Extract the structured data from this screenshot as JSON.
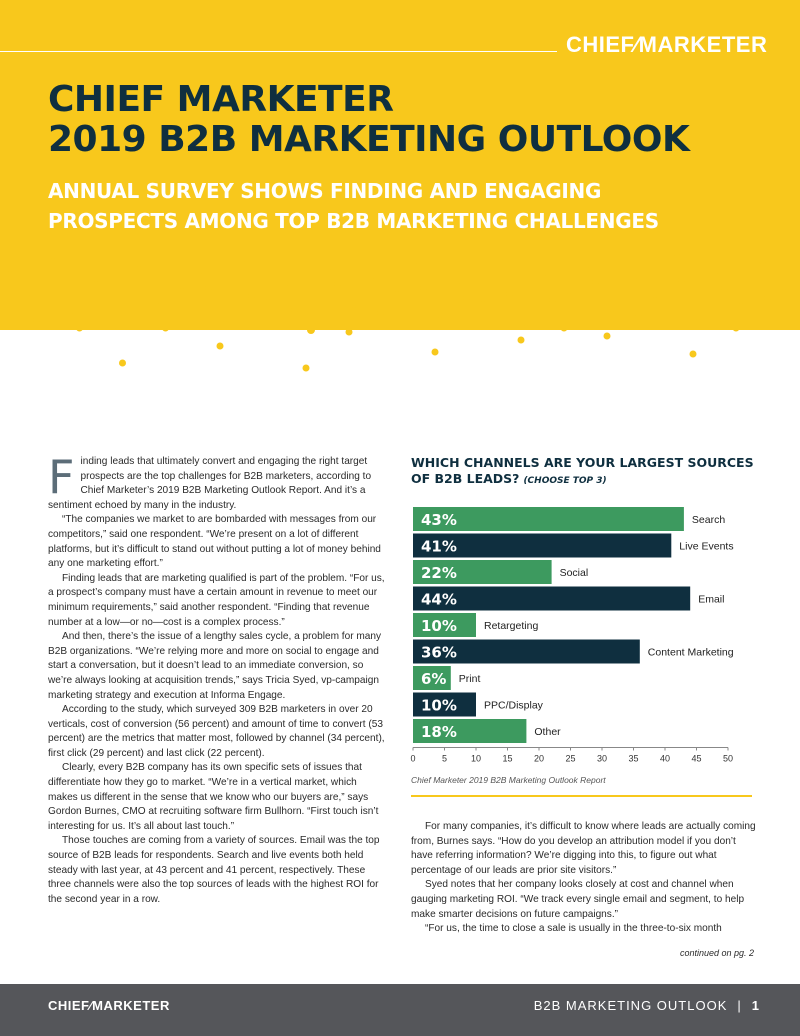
{
  "brand": {
    "logo": "CHIEF⁄MARKETER"
  },
  "header": {
    "title_line1": "CHIEF MARKETER",
    "title_line2": "2019 B2B MARKETING OUTLOOK",
    "subtitle_line1": "ANNUAL SURVEY SHOWS FINDING AND ENGAGING",
    "subtitle_line2": "PROSPECTS AMONG TOP B2B MARKETING CHALLENGES"
  },
  "colors": {
    "yellow": "#f8c81c",
    "navy": "#0f2f3f",
    "green": "#3d9a5f",
    "footer_gray": "#55565a"
  },
  "article_left": {
    "drop_cap": "F",
    "paragraphs": [
      "inding leads that ultimately convert and engaging the right target prospects are the top challenges for B2B marketers, according to Chief Marketer’s 2019 B2B Marketing Outlook Report. And it’s a sentiment echoed by many in the industry.",
      "“The companies we market to are bombarded with messages from our competitors,” said one respondent. “We’re present on a lot of different platforms, but it’s difficult to stand out without putting a lot of money behind any one marketing effort.”",
      "Finding leads that are marketing qualified is part of the problem. “For us, a prospect’s company must have a certain amount in revenue to meet our minimum requirements,” said another respondent. “Finding that revenue number at a low—or no—cost is a complex process.”",
      "And then, there’s the issue of a lengthy sales cycle, a problem for many B2B organizations. “We’re relying more and more on social to engage and start a conversation, but it doesn’t lead to an immediate conversion, so we’re always looking at acquisition trends,” says Tricia Syed, vp-campaign marketing strategy and execution at Informa Engage.",
      "According to the study, which surveyed 309 B2B marketers in over 20 verticals, cost of conversion (56 percent) and amount of time to convert (53 percent) are the metrics that matter most, followed by channel (34 percent), first click (29 percent) and last click (22 percent).",
      "Clearly, every B2B company has its own specific sets of issues that differentiate how they go to market. “We’re in a vertical market, which makes us different in the sense that we know who our buyers are,” says Gordon Burnes, CMO at recruiting software firm Bullhorn. “First touch isn’t interesting for us. It’s all about last touch.”",
      "Those touches are coming from a variety of sources. Email was the top source of B2B leads for respondents. Search and live events both held steady with last year, at 43 percent and 41 percent, respectively. These three channels were also the top sources of leads with the highest ROI for the second year in a row."
    ]
  },
  "chart_title": {
    "main": "WHICH CHANNELS ARE YOUR LARGEST SOURCES OF B2B LEADS?",
    "note": "(CHOOSE TOP 3)"
  },
  "chart_data": {
    "type": "bar",
    "orientation": "horizontal",
    "categories": [
      "Search",
      "Live Events",
      "Social",
      "Email",
      "Retargeting",
      "Content Marketing",
      "Print",
      "PPC/Display",
      "Other"
    ],
    "values": [
      43,
      41,
      22,
      44,
      10,
      36,
      6,
      10,
      18
    ],
    "value_labels": [
      "43%",
      "41%",
      "22%",
      "44%",
      "10%",
      "36%",
      "6%",
      "10%",
      "18%"
    ],
    "bar_colors": [
      "#3d9a5f",
      "#0f2f3f",
      "#3d9a5f",
      "#0f2f3f",
      "#3d9a5f",
      "#0f2f3f",
      "#3d9a5f",
      "#0f2f3f",
      "#3d9a5f"
    ],
    "xlim": [
      0,
      50
    ],
    "x_ticks": [
      "0",
      "5",
      "10",
      "15",
      "20",
      "25",
      "30",
      "35",
      "40",
      "45",
      "50"
    ]
  },
  "chart_source": "Chief Marketer 2019 B2B Marketing Outlook Report",
  "article_right": {
    "paragraphs": [
      "For many companies, it’s difficult to know where leads are actually coming from, Burnes says. “How do you develop an attribution model if you don’t have referring information? We’re digging into this, to figure out what percentage of our leads are prior site visitors.”",
      "Syed notes that her company looks closely at cost and channel when gauging marketing ROI. “We track every single email and segment, to help make smarter decisions on future campaigns.”",
      "“For us, the time to close a sale is usually in the three-to-six month"
    ],
    "continued": "continued on pg. 2"
  },
  "footer": {
    "section": "B2B MARKETING OUTLOOK",
    "separator": "|",
    "page": "1"
  }
}
